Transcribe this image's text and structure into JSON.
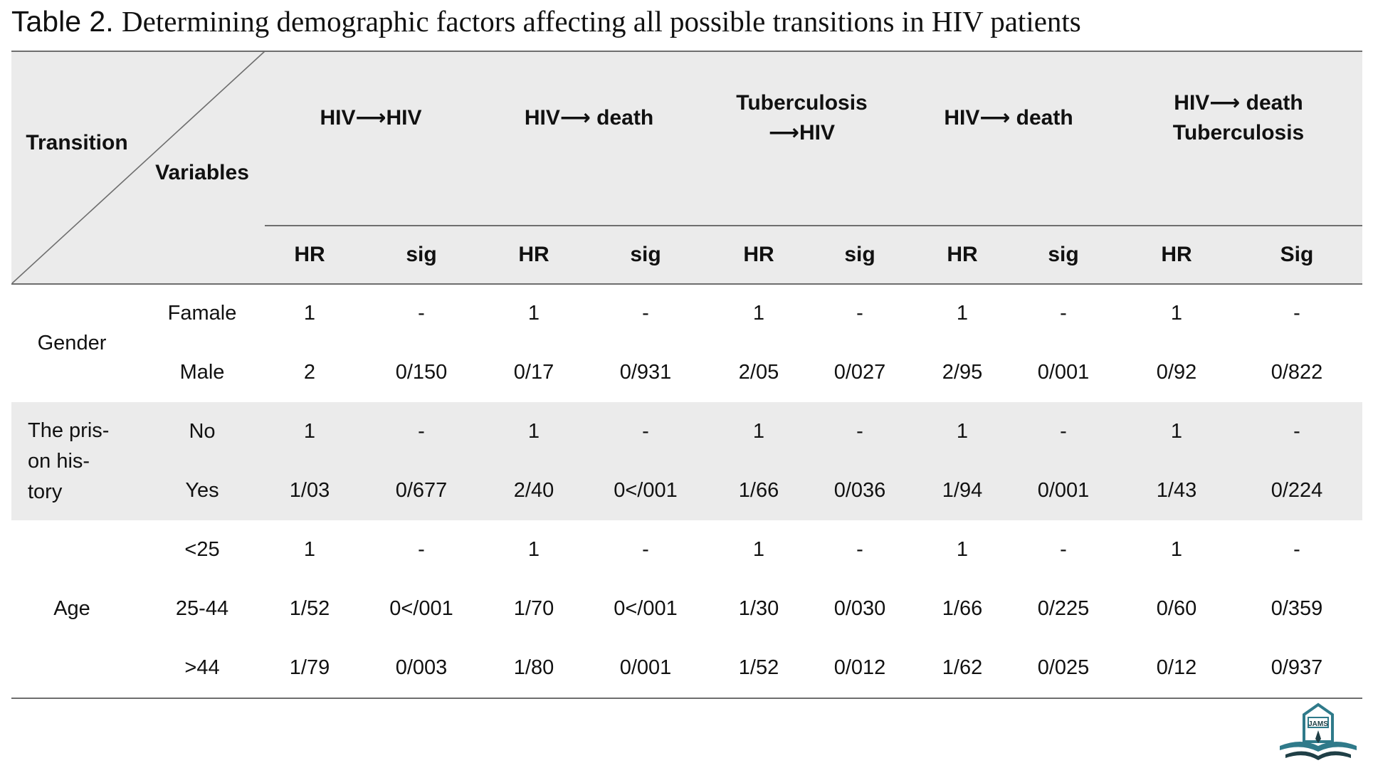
{
  "title": {
    "label": "Table 2.",
    "text": "Determining demographic factors affecting all possible transitions in HIV patients"
  },
  "header": {
    "corner_top": "Transition",
    "corner_bottom": "Variables",
    "groups": [
      {
        "lines": [
          "HIV⟶HIV"
        ]
      },
      {
        "lines": [
          "HIV⟶ death"
        ]
      },
      {
        "lines": [
          "Tuberculosis",
          "⟶HIV"
        ]
      },
      {
        "lines": [
          "HIV⟶ death"
        ]
      },
      {
        "lines": [
          "HIV⟶ death",
          "Tuberculosis"
        ]
      }
    ],
    "subs": [
      "HR",
      "sig",
      "HR",
      "sig",
      "HR",
      "sig",
      "HR",
      "sig",
      "HR",
      "Sig"
    ]
  },
  "sections": [
    {
      "label": "Gender",
      "shaded": false,
      "rows": [
        {
          "variable": "Famale",
          "values": [
            "1",
            "-",
            "1",
            "-",
            "1",
            "-",
            "1",
            "-",
            "1",
            "-"
          ]
        },
        {
          "variable": "Male",
          "values": [
            "2",
            "0/150",
            "0/17",
            "0/931",
            "2/05",
            "0/027",
            "2/95",
            "0/001",
            "0/92",
            "0/822"
          ]
        }
      ]
    },
    {
      "label_lines": [
        "The pris-",
        "on his-",
        "tory"
      ],
      "shaded": true,
      "rows": [
        {
          "variable": "No",
          "values": [
            "1",
            "-",
            "1",
            "-",
            "1",
            "-",
            "1",
            "-",
            "1",
            "-"
          ]
        },
        {
          "variable": "Yes",
          "values": [
            "1/03",
            "0/677",
            "2/40",
            "0</001",
            "1/66",
            "0/036",
            "1/94",
            "0/001",
            "1/43",
            "0/224"
          ]
        }
      ]
    },
    {
      "label": "Age",
      "shaded": false,
      "rows": [
        {
          "variable": "<25",
          "values": [
            "1",
            "-",
            "1",
            "-",
            "1",
            "-",
            "1",
            "-",
            "1",
            "-"
          ]
        },
        {
          "variable": "25-44",
          "values": [
            "1/52",
            "0</001",
            "1/70",
            "0</001",
            "1/30",
            "0/030",
            "1/66",
            "0/225",
            "0/60",
            "0/359"
          ]
        },
        {
          "variable": ">44",
          "values": [
            "1/79",
            "0/003",
            "1/80",
            "0/001",
            "1/52",
            "0/012",
            "1/62",
            "0/025",
            "0/12",
            "0/937"
          ]
        }
      ]
    }
  ],
  "logo": {
    "text": "JAMS",
    "color_primary": "#2f7a8a",
    "color_dark": "#1f3f46"
  }
}
